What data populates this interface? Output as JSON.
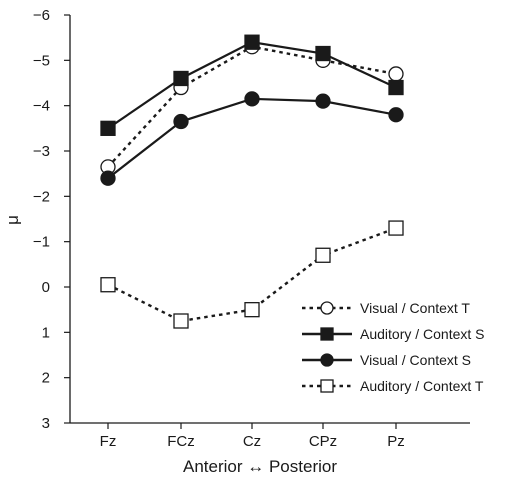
{
  "chart_data": {
    "type": "line",
    "title": "",
    "xlabel": "Anterior ↔ Posterior",
    "ylabel": "μ",
    "categories": [
      "Fz",
      "FCz",
      "Cz",
      "CPz",
      "Pz"
    ],
    "y_axis": {
      "inverted": true,
      "ylim": [
        3,
        -6
      ],
      "ticks": [
        3,
        2,
        1,
        0,
        -1,
        -2,
        -3,
        -4,
        -5,
        -6
      ]
    },
    "y_tick_labels": [
      "3",
      "2",
      "1",
      "0",
      "−1",
      "−2",
      "−3",
      "−4",
      "−5",
      "−6"
    ],
    "grid": false,
    "legend_position": "bottom-right",
    "series": [
      {
        "name": "Visual / Context T",
        "line": "dotted",
        "marker": "circle",
        "filled": false,
        "values": [
          -2.65,
          -4.4,
          -5.3,
          -5.0,
          -4.7
        ]
      },
      {
        "name": "Auditory / Context S",
        "line": "solid",
        "marker": "square",
        "filled": true,
        "values": [
          -3.5,
          -4.6,
          -5.4,
          -5.15,
          -4.4
        ]
      },
      {
        "name": "Visual / Context S",
        "line": "solid",
        "marker": "circle",
        "filled": true,
        "values": [
          -2.4,
          -3.65,
          -4.15,
          -4.1,
          -3.8
        ]
      },
      {
        "name": "Auditory / Context T",
        "line": "dotted",
        "marker": "square",
        "filled": false,
        "values": [
          -0.05,
          0.75,
          0.5,
          -0.7,
          -1.3
        ]
      }
    ]
  }
}
